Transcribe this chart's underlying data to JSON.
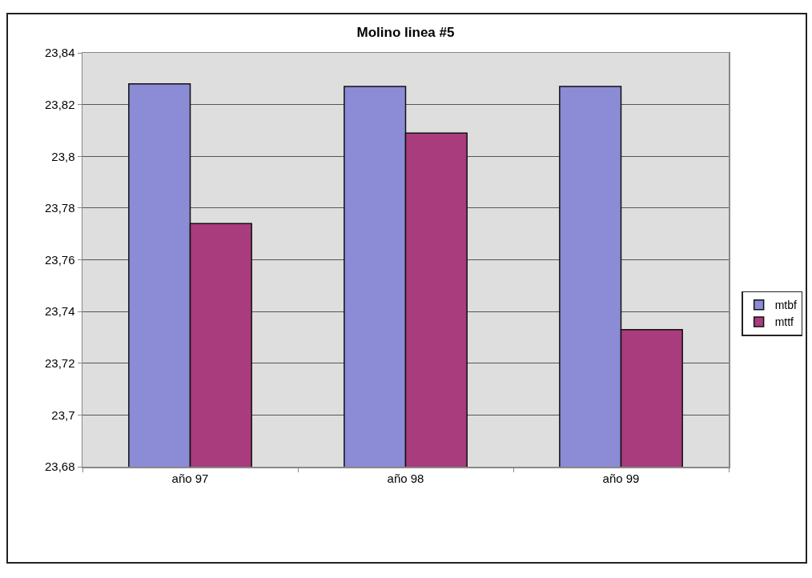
{
  "chart_data": {
    "type": "bar",
    "title": "Molino linea #5",
    "categories": [
      "año 97",
      "año 98",
      "año 99"
    ],
    "series": [
      {
        "name": "mtbf",
        "color": "#8b8bd6",
        "values": [
          23.828,
          23.827,
          23.827
        ]
      },
      {
        "name": "mttf",
        "color": "#a83c7c",
        "values": [
          23.774,
          23.809,
          23.733
        ]
      }
    ],
    "ylim": [
      23.68,
      23.84
    ],
    "yticks": [
      {
        "value": 23.68,
        "label": "23,68"
      },
      {
        "value": 23.7,
        "label": "23,7"
      },
      {
        "value": 23.72,
        "label": "23,72"
      },
      {
        "value": 23.74,
        "label": "23,74"
      },
      {
        "value": 23.76,
        "label": "23,76"
      },
      {
        "value": 23.78,
        "label": "23,78"
      },
      {
        "value": 23.8,
        "label": "23,8"
      },
      {
        "value": 23.82,
        "label": "23,82"
      },
      {
        "value": 23.84,
        "label": "23,84"
      }
    ],
    "grid": "y",
    "legend": "right"
  }
}
